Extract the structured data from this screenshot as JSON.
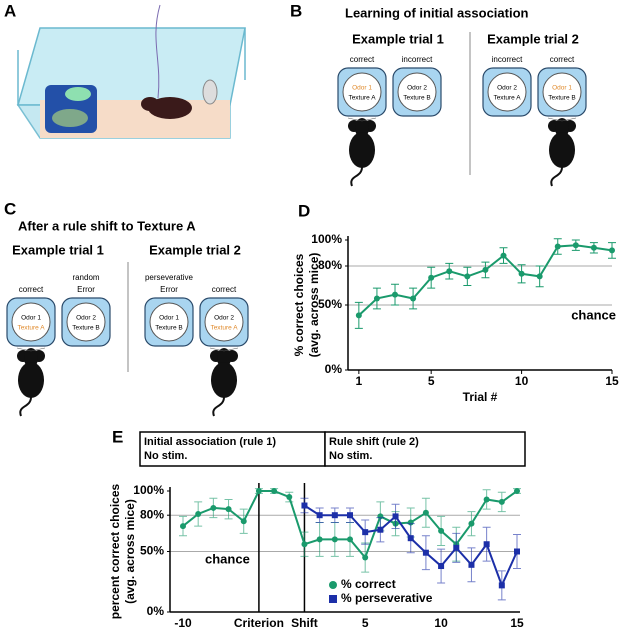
{
  "panels": {
    "a": {
      "label": "A"
    },
    "b": {
      "label": "B",
      "title": "Learning of initial association",
      "trials": [
        {
          "title": "Example trial 1",
          "choices": [
            {
              "outcome": [
                "correct"
              ],
              "odor": "Odor 1",
              "texture": "Texture A"
            },
            {
              "outcome": [
                "incorrect"
              ],
              "odor": "Odor 2",
              "texture": "Texture B"
            }
          ]
        },
        {
          "title": "Example trial 2",
          "choices": [
            {
              "outcome": [
                "incorrect"
              ],
              "odor": "Odor 2",
              "texture": "Texture A"
            },
            {
              "outcome": [
                "correct"
              ],
              "odor": "Odor 1",
              "texture": "Texture B"
            }
          ]
        }
      ]
    },
    "c": {
      "label": "C",
      "title": "After a rule shift to Texture A",
      "trials": [
        {
          "title": "Example trial 1",
          "choices": [
            {
              "outcome": [
                "correct"
              ],
              "odor": "Odor 1",
              "texture": "Texture A"
            },
            {
              "outcome": [
                "random",
                "Error"
              ],
              "odor": "Odor 2",
              "texture": "Texture B"
            }
          ]
        },
        {
          "title": "Example trial 2",
          "choices": [
            {
              "outcome": [
                "perseverative",
                "Error"
              ],
              "odor": "Odor 1",
              "texture": "Texture B"
            },
            {
              "outcome": [
                "correct"
              ],
              "odor": "Odor 2",
              "texture": "Texture A"
            }
          ]
        }
      ]
    },
    "d": {
      "label": "D"
    },
    "e": {
      "label": "E",
      "boxes": [
        {
          "lines": [
            "Initial association (rule 1)",
            "No stim."
          ]
        },
        {
          "lines": [
            "Rule shift (rule 2)",
            "No stim."
          ]
        }
      ]
    }
  },
  "chart_data": [
    {
      "type": "line",
      "x_label": "Trial #",
      "y_label": [
        "% correct choices",
        "(avg. across mice)"
      ],
      "annotation": "chance",
      "x": [
        1,
        2,
        3,
        4,
        5,
        6,
        7,
        8,
        9,
        10,
        11,
        12,
        13,
        14,
        15
      ],
      "series": [
        {
          "name": "% correct",
          "color": "#1a9a6c",
          "values": [
            42,
            55,
            58,
            55,
            71,
            76,
            72,
            77,
            88,
            74,
            72,
            95,
            96,
            94,
            92
          ],
          "errors": [
            10,
            8,
            8,
            8,
            8,
            6,
            7,
            6,
            6,
            7,
            8,
            6,
            4,
            4,
            6
          ]
        }
      ],
      "xlim": [
        0.4,
        15
      ],
      "xticks": [
        1,
        5,
        10,
        15
      ],
      "ylim": [
        0,
        100
      ],
      "yticks": [
        {
          "value": 0,
          "label": "0%"
        },
        {
          "value": 50,
          "label": "50%"
        },
        {
          "value": 80,
          "label": "80%"
        },
        {
          "value": 100,
          "label": "100%"
        }
      ],
      "grid": true
    },
    {
      "type": "line",
      "y_label": [
        "percent correct choices",
        "(avg. across mice)"
      ],
      "annotation": "chance",
      "legend": "bottom",
      "categories": [
        "-10",
        null,
        null,
        null,
        null,
        "Criterion",
        null,
        null,
        "Shift",
        null,
        null,
        null,
        "5",
        null,
        null,
        null,
        null,
        "10",
        null,
        null,
        null,
        null,
        "15"
      ],
      "series": [
        {
          "name": "% correct",
          "color": "#1a9a6c",
          "marker": "circle",
          "values": [
            71,
            81,
            86,
            85,
            75,
            100,
            100,
            95,
            56,
            60,
            60,
            60,
            45,
            79,
            73,
            74,
            82,
            67,
            56,
            73,
            93,
            91,
            100
          ],
          "errors": [
            8,
            10,
            8,
            8,
            10,
            2,
            2,
            4,
            10,
            14,
            14,
            14,
            12,
            12,
            10,
            12,
            12,
            12,
            14,
            10,
            8,
            8,
            2
          ]
        },
        {
          "name": "% perseverative",
          "color": "#1c2fa8",
          "marker": "square",
          "values": [
            null,
            null,
            null,
            null,
            null,
            null,
            null,
            null,
            88,
            80,
            80,
            80,
            66,
            68,
            79,
            61,
            49,
            38,
            53,
            39,
            56,
            22,
            50
          ],
          "errors": [
            null,
            null,
            null,
            null,
            null,
            null,
            null,
            null,
            6,
            6,
            6,
            6,
            10,
            10,
            10,
            12,
            14,
            14,
            12,
            14,
            14,
            12,
            14
          ]
        }
      ],
      "ylim": [
        0,
        100
      ],
      "yticks": [
        {
          "value": 0,
          "label": "0%"
        },
        {
          "value": 50,
          "label": "50%"
        },
        {
          "value": 80,
          "label": "80%"
        },
        {
          "value": 100,
          "label": "100%"
        }
      ],
      "grid": true
    }
  ]
}
